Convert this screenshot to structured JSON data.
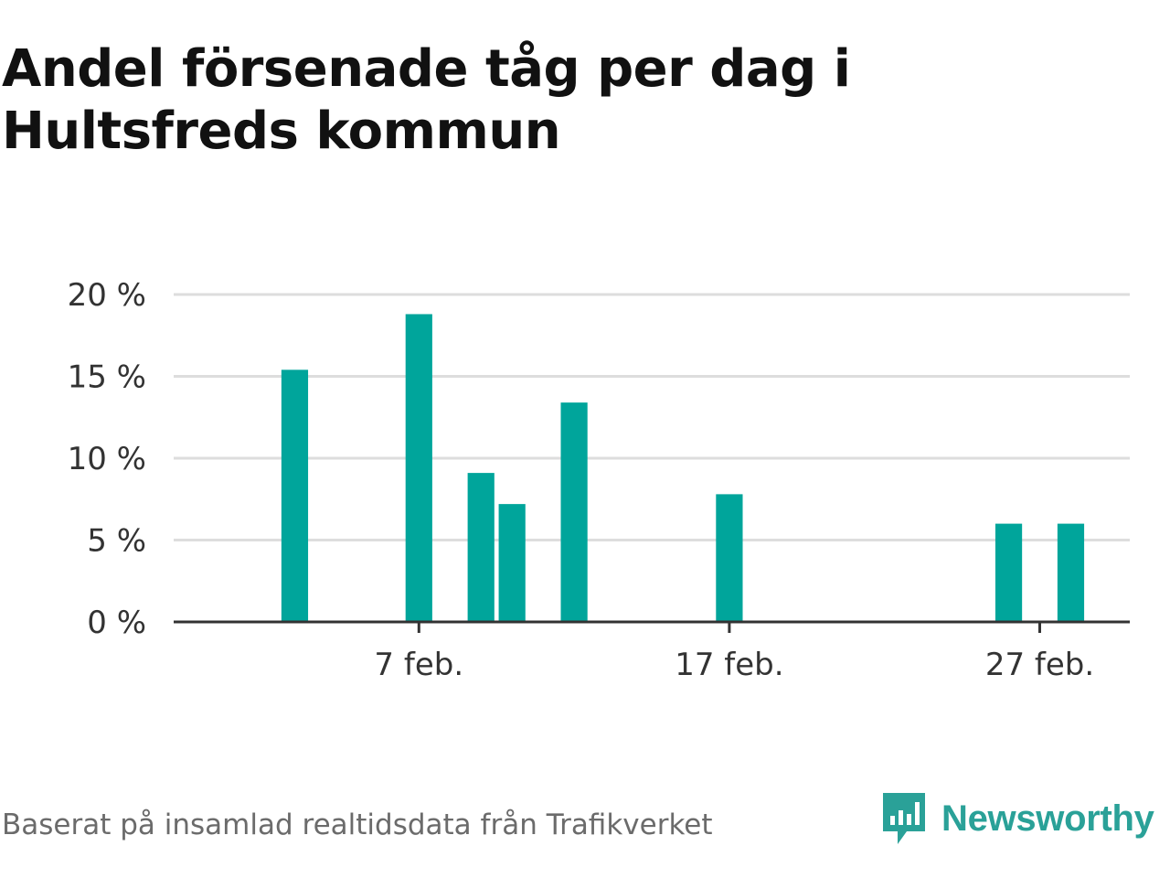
{
  "source_text": "Baserat på insamlad realtidsdata från Trafikverket",
  "brand": {
    "name": "Newsworthy",
    "icon": "newsworthy-logo-icon",
    "color": "#2aa198"
  },
  "chart_data": {
    "type": "bar",
    "title": "Andel försenade tåg per dag i Hultsfreds kommun",
    "xlabel": "",
    "ylabel": "",
    "bar_color": "#00a59b",
    "ylim": [
      0,
      20
    ],
    "y_ticks": [
      0,
      5,
      10,
      15,
      20
    ],
    "y_tick_labels": [
      "0 %",
      "5 %",
      "10 %",
      "15 %",
      "20 %"
    ],
    "x_ticks": [
      7,
      17,
      27
    ],
    "x_tick_labels": [
      "7 feb.",
      "17 feb.",
      "27 feb."
    ],
    "x_range": [
      -0.9,
      29.9
    ],
    "grid": true,
    "x": [
      1,
      2,
      3,
      4,
      5,
      6,
      7,
      8,
      9,
      10,
      11,
      12,
      13,
      14,
      15,
      16,
      17,
      18,
      19,
      20,
      21,
      22,
      23,
      24,
      25,
      26,
      27,
      28
    ],
    "values": [
      0,
      0,
      15.4,
      0,
      0,
      0,
      18.8,
      0,
      9.1,
      7.2,
      0,
      13.4,
      0,
      0,
      0,
      0,
      7.8,
      0,
      0,
      0,
      0,
      0,
      0,
      0,
      0,
      6.0,
      0,
      6.0
    ]
  }
}
